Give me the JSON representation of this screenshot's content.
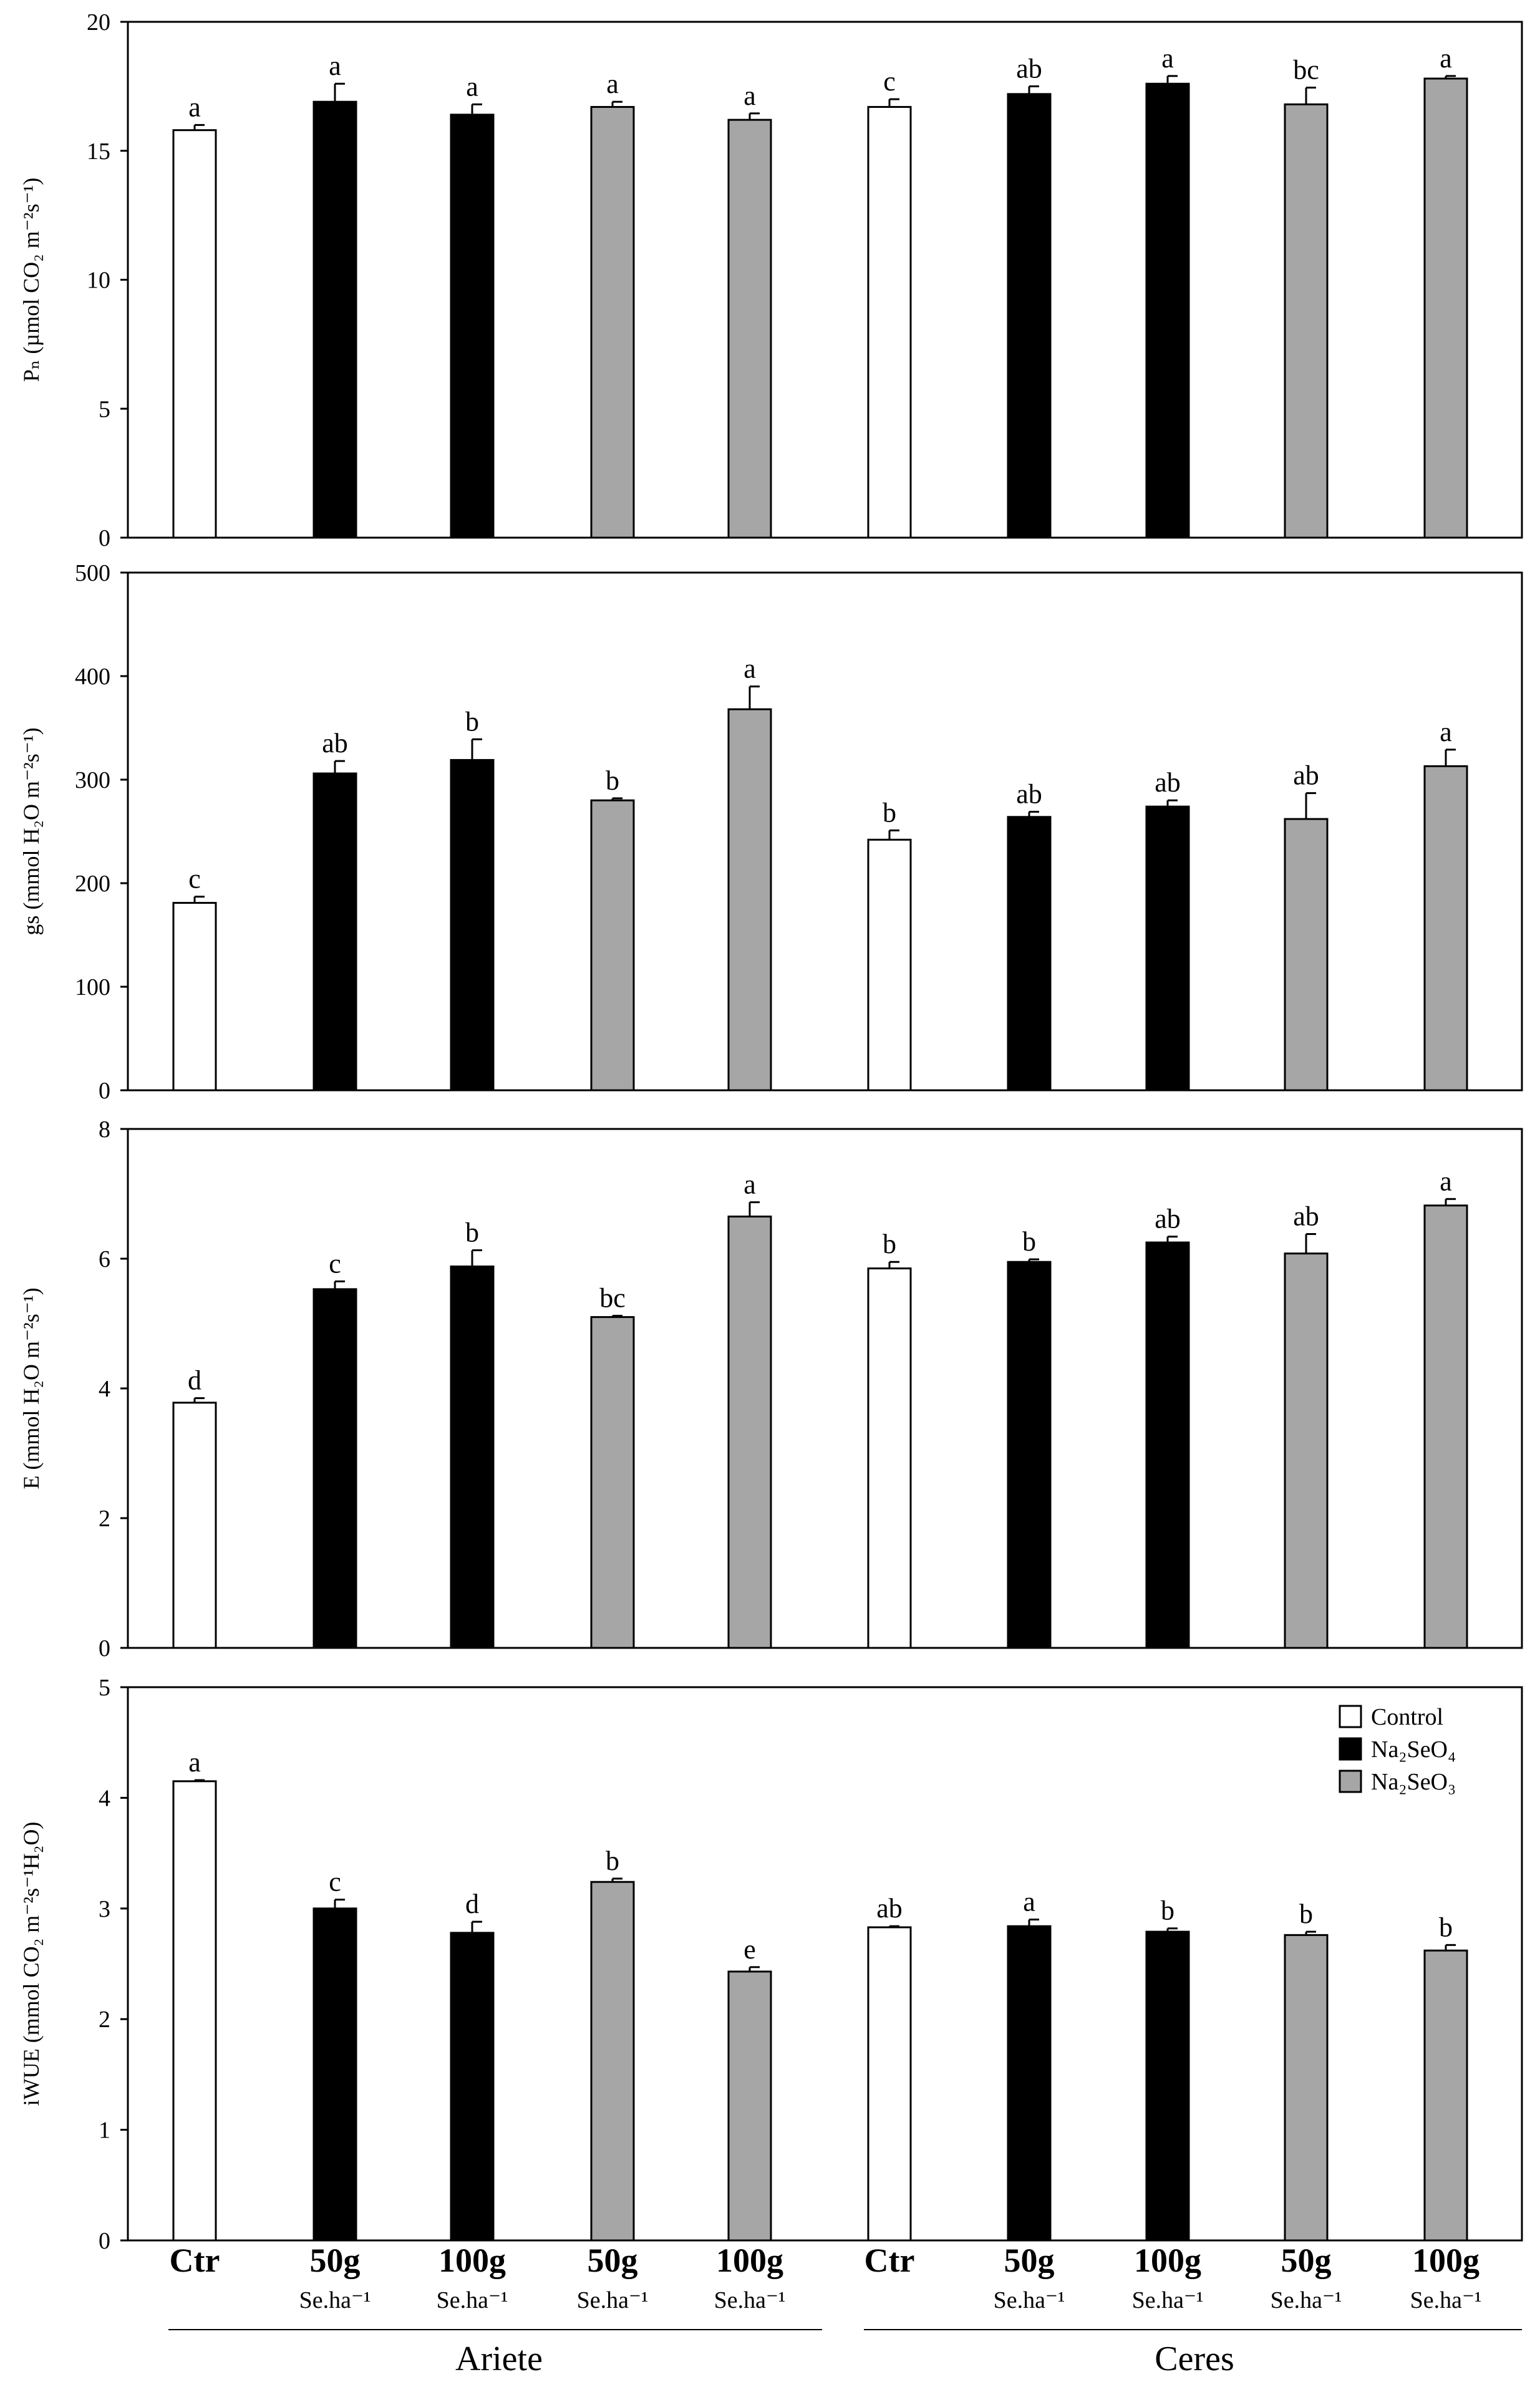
{
  "x_axis": {
    "tick_labels": [
      {
        "top": "Ctr",
        "bottom": ""
      },
      {
        "top": "50g",
        "bottom": "Se.ha⁻¹"
      },
      {
        "top": "100g",
        "bottom": "Se.ha⁻¹"
      },
      {
        "top": "50g",
        "bottom": "Se.ha⁻¹"
      },
      {
        "top": "100g",
        "bottom": "Se.ha⁻¹"
      },
      {
        "top": "Ctr",
        "bottom": ""
      },
      {
        "top": "50g",
        "bottom": "Se.ha⁻¹"
      },
      {
        "top": "100g",
        "bottom": "Se.ha⁻¹"
      },
      {
        "top": "50g",
        "bottom": "Se.ha⁻¹"
      },
      {
        "top": "100g",
        "bottom": "Se.ha⁻¹"
      }
    ],
    "groups": [
      "Ariete",
      "Ceres"
    ]
  },
  "legend": [
    {
      "label": "Control",
      "color": "#ffffff"
    },
    {
      "label": "Na₂SeO₄",
      "color": "#000000"
    },
    {
      "label": "Na₂SeO₃",
      "color": "#a6a6a6"
    }
  ],
  "bar_treatments": [
    "Control",
    "Na₂SeO₄",
    "Na₂SeO₄",
    "Na₂SeO₃",
    "Na₂SeO₃",
    "Control",
    "Na₂SeO₄",
    "Na₂SeO₄",
    "Na₂SeO₃",
    "Na₂SeO₃"
  ],
  "chart_data": [
    {
      "type": "bar",
      "ylabel": "Pₙ (µmol CO₂ m⁻²s⁻¹)",
      "ylim": [
        0,
        20
      ],
      "yticks": [
        0,
        5,
        10,
        15,
        20
      ],
      "values": [
        15.8,
        16.9,
        16.4,
        16.7,
        16.2,
        16.7,
        17.2,
        17.6,
        16.8,
        17.8
      ],
      "errors": [
        0.2,
        0.7,
        0.4,
        0.2,
        0.25,
        0.3,
        0.3,
        0.3,
        0.65,
        0.1
      ],
      "letters": [
        "a",
        "a",
        "a",
        "a",
        "a",
        "c",
        "ab",
        "a",
        "bc",
        "a"
      ]
    },
    {
      "type": "bar",
      "ylabel": "gs (mmol H₂O m⁻²s⁻¹)",
      "ylim": [
        0,
        500
      ],
      "yticks": [
        0,
        100,
        200,
        300,
        400,
        500
      ],
      "values": [
        181,
        306,
        319,
        280,
        368,
        242,
        264,
        274,
        262,
        313
      ],
      "errors": [
        6,
        12,
        20,
        2,
        22,
        9,
        5,
        6,
        25,
        16
      ],
      "letters": [
        "c",
        "ab",
        "b",
        "b",
        "a",
        "b",
        "ab",
        "ab",
        "ab",
        "a"
      ]
    },
    {
      "type": "bar",
      "ylabel": "E (mmol H₂O m⁻²s⁻¹)",
      "ylim": [
        0,
        8
      ],
      "yticks": [
        0,
        2,
        4,
        6,
        8
      ],
      "values": [
        3.78,
        5.53,
        5.88,
        5.1,
        6.65,
        5.85,
        5.95,
        6.25,
        6.08,
        6.82
      ],
      "errors": [
        0.07,
        0.12,
        0.25,
        0.02,
        0.22,
        0.1,
        0.04,
        0.09,
        0.3,
        0.1
      ],
      "letters": [
        "d",
        "c",
        "b",
        "bc",
        "a",
        "b",
        "b",
        "ab",
        "ab",
        "a"
      ]
    },
    {
      "type": "bar",
      "ylabel": "iWUE (mmol CO₂ m⁻²s⁻¹H₂O)",
      "ylim": [
        0,
        5
      ],
      "yticks": [
        0,
        1,
        2,
        3,
        4,
        5
      ],
      "values": [
        4.15,
        3.0,
        2.78,
        3.24,
        2.43,
        2.83,
        2.84,
        2.79,
        2.76,
        2.62
      ],
      "errors": [
        0.01,
        0.08,
        0.1,
        0.03,
        0.04,
        0.01,
        0.06,
        0.03,
        0.03,
        0.05
      ],
      "letters": [
        "a",
        "c",
        "d",
        "b",
        "e",
        "ab",
        "a",
        "b",
        "b",
        "b"
      ]
    }
  ]
}
